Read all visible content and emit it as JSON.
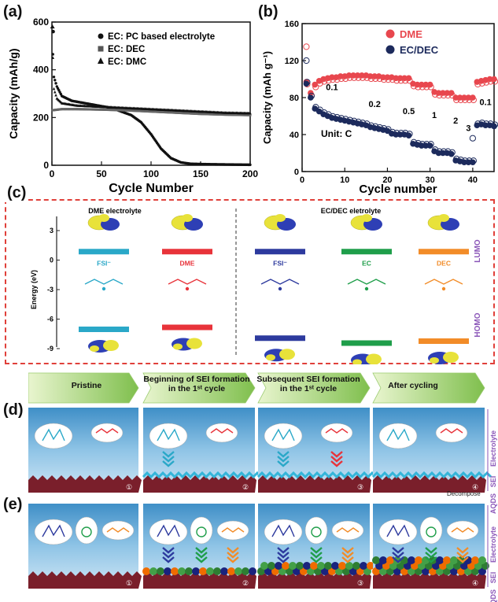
{
  "panels": {
    "a": {
      "label": "(a)"
    },
    "b": {
      "label": "(b)"
    },
    "c": {
      "label": "(c)"
    },
    "d": {
      "label": "(d)"
    },
    "e": {
      "label": "(e)"
    }
  },
  "chart_data": [
    {
      "type": "scatter",
      "xlabel": "Cycle Number",
      "ylabel": "Capacity (mAh/g)",
      "xlim": [
        0,
        200
      ],
      "ylim": [
        0,
        600
      ],
      "xticks": [
        "0",
        "50",
        "100",
        "150",
        "200"
      ],
      "yticks": [
        "0",
        "200",
        "400",
        "600"
      ],
      "legend_position": "top-right",
      "series": [
        {
          "name": "EC: PC based electrolyte",
          "marker": "circle",
          "x": [
            0,
            2,
            5,
            10,
            20,
            40,
            60,
            80,
            90,
            100,
            110,
            120,
            130,
            140,
            160,
            180,
            200
          ],
          "y": [
            560,
            370,
            330,
            290,
            270,
            255,
            240,
            210,
            180,
            130,
            70,
            30,
            12,
            6,
            4,
            3,
            2
          ]
        },
        {
          "name": "EC: DEC",
          "marker": "square",
          "x": [
            0,
            10,
            25,
            50,
            75,
            100,
            125,
            150,
            175,
            200
          ],
          "y": [
            240,
            245,
            245,
            243,
            240,
            235,
            230,
            225,
            222,
            220
          ]
        },
        {
          "name": "EC: DMC",
          "marker": "triangle",
          "x": [
            0,
            2,
            5,
            10,
            25,
            50,
            75,
            100,
            125,
            150,
            175,
            200
          ],
          "y": [
            580,
            320,
            280,
            260,
            250,
            245,
            240,
            235,
            230,
            225,
            220,
            218
          ]
        }
      ]
    },
    {
      "type": "scatter",
      "xlabel": "Cycle number",
      "ylabel": "Capacity (mAh g⁻¹)",
      "xlim": [
        0,
        45
      ],
      "ylim": [
        0,
        160
      ],
      "xticks": [
        "0",
        "10",
        "20",
        "30",
        "40"
      ],
      "yticks": [
        "0",
        "40",
        "80",
        "120",
        "160"
      ],
      "unit_label": "Unit: C",
      "rate_labels": [
        "0.1",
        "0.2",
        "0.5",
        "1",
        "2",
        "3",
        "0.1"
      ],
      "legend_position": "top-right",
      "series": [
        {
          "name": "DME",
          "color": "#e8474e",
          "x": [
            1,
            2,
            3,
            4,
            5,
            6,
            7,
            8,
            9,
            10,
            11,
            12,
            13,
            14,
            15,
            16,
            17,
            18,
            19,
            20,
            21,
            22,
            23,
            24,
            25,
            26,
            27,
            28,
            29,
            30,
            31,
            32,
            33,
            34,
            35,
            36,
            37,
            38,
            39,
            40,
            41,
            42,
            43,
            44,
            45
          ],
          "y": [
            97,
            85,
            94,
            98,
            100,
            101,
            102,
            102,
            103,
            103,
            104,
            104,
            104,
            104,
            104,
            103,
            103,
            103,
            102,
            102,
            102,
            101,
            101,
            101,
            101,
            95,
            94,
            94,
            94,
            94,
            86,
            85,
            85,
            85,
            85,
            80,
            80,
            80,
            80,
            80,
            97,
            98,
            99,
            100,
            100
          ]
        },
        {
          "name": "EC/DEC",
          "color": "#1c2a5c",
          "x": [
            1,
            2,
            3,
            4,
            5,
            6,
            7,
            8,
            9,
            10,
            11,
            12,
            13,
            14,
            15,
            16,
            17,
            18,
            19,
            20,
            21,
            22,
            23,
            24,
            25,
            26,
            27,
            28,
            29,
            30,
            31,
            32,
            33,
            34,
            35,
            36,
            37,
            38,
            39,
            40,
            41,
            42,
            43,
            44,
            45
          ],
          "y": [
            95,
            80,
            68,
            65,
            62,
            60,
            58,
            57,
            56,
            55,
            54,
            53,
            52,
            51,
            50,
            48,
            47,
            46,
            45,
            44,
            41,
            40,
            40,
            40,
            39,
            30,
            29,
            28,
            28,
            28,
            22,
            20,
            20,
            20,
            19,
            12,
            11,
            10,
            10,
            10,
            50,
            51,
            50,
            50,
            49
          ]
        }
      ]
    }
  ],
  "panel_c": {
    "left_title": "DME electrolyte",
    "right_title": "EC/DEC eletrolyte",
    "ylabel": "Energy (eV)",
    "yticks": [
      "3",
      "0",
      "-3",
      "-6",
      "-9"
    ],
    "species": [
      {
        "name": "FSI⁻",
        "color": "#2aa8c8"
      },
      {
        "name": "DME",
        "color": "#e8333a"
      },
      {
        "name": "FSI⁻",
        "color": "#2d3a9e"
      },
      {
        "name": "EC",
        "color": "#1f9e4a"
      },
      {
        "name": "DEC",
        "color": "#f28c28"
      }
    ],
    "lumo_label": "LUMO",
    "homo_label": "HOMO"
  },
  "stages": [
    {
      "title": "Pristine",
      "num": "①"
    },
    {
      "title": "Beginning of SEI formation in the 1ˢᵗ cycle",
      "num": "②"
    },
    {
      "title": "Subsequent SEI formation in the 1ˢᵗ cycle",
      "num": "③"
    },
    {
      "title": "After cycling",
      "num": "④"
    }
  ],
  "panel_d": {
    "decompose_label": "Decompose"
  },
  "side_labels": {
    "electrolyte": "Electrolyte",
    "sei": "SEI",
    "aqds": "AQDS"
  }
}
